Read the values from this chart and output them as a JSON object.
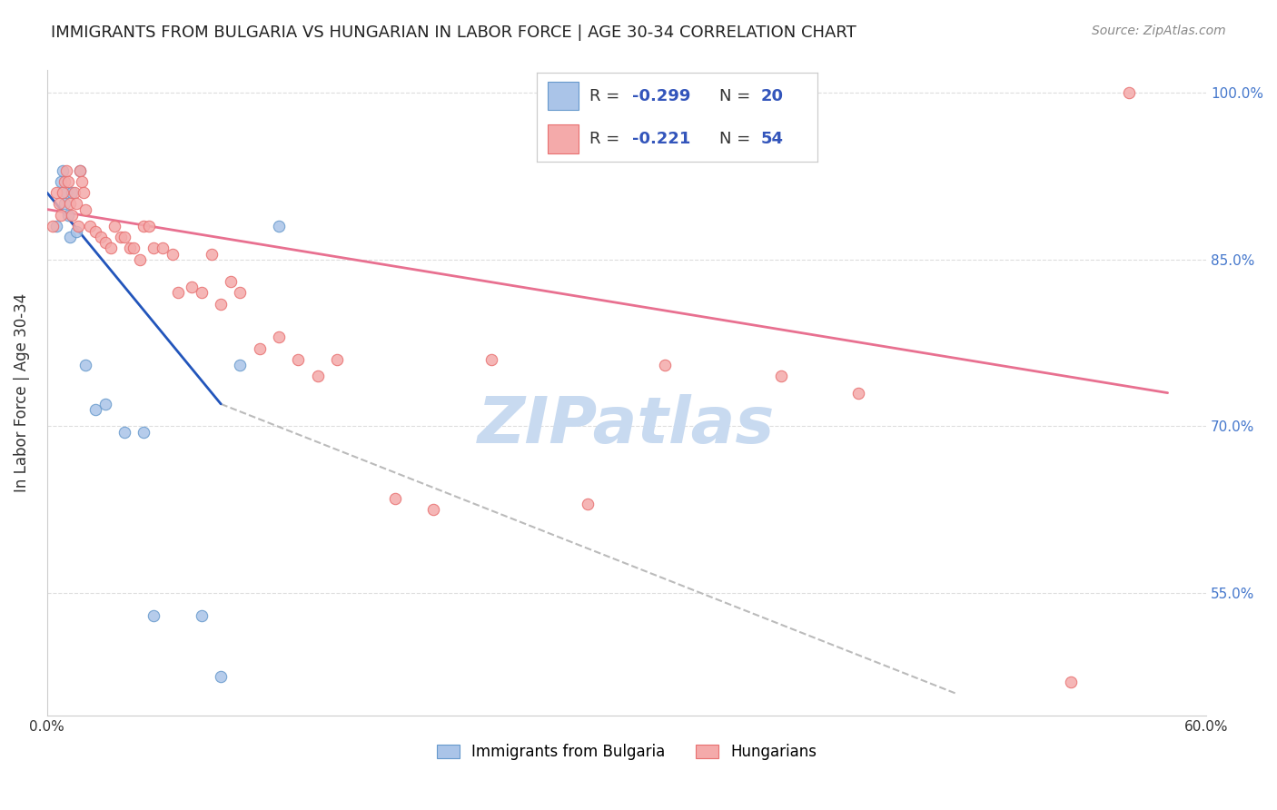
{
  "title": "IMMIGRANTS FROM BULGARIA VS HUNGARIAN IN LABOR FORCE | AGE 30-34 CORRELATION CHART",
  "source": "Source: ZipAtlas.com",
  "ylabel": "In Labor Force | Age 30-34",
  "x_min": 0.0,
  "x_max": 0.6,
  "y_min": 0.44,
  "y_max": 1.02,
  "x_ticks": [
    0.0,
    0.1,
    0.2,
    0.3,
    0.4,
    0.5,
    0.6
  ],
  "y_ticks": [
    0.55,
    0.7,
    0.85,
    1.0
  ],
  "y_tick_labels": [
    "55.0%",
    "70.0%",
    "85.0%",
    "100.0%"
  ],
  "bg_color": "#ffffff",
  "grid_color": "#dddddd",
  "bulgaria_color": "#aac4e8",
  "bulgaria_edge_color": "#6699cc",
  "hungarian_color": "#f4aaaa",
  "hungarian_edge_color": "#e87070",
  "r_bulgaria": -0.299,
  "n_bulgaria": 20,
  "r_hungarian": -0.221,
  "n_hungarian": 54,
  "legend_r_color": "#3355bb",
  "bulgaria_scatter_x": [
    0.005,
    0.007,
    0.008,
    0.009,
    0.01,
    0.011,
    0.012,
    0.013,
    0.015,
    0.017,
    0.02,
    0.025,
    0.03,
    0.04,
    0.05,
    0.055,
    0.08,
    0.09,
    0.1,
    0.12
  ],
  "bulgaria_scatter_y": [
    0.88,
    0.92,
    0.93,
    0.9,
    0.91,
    0.89,
    0.87,
    0.91,
    0.875,
    0.93,
    0.755,
    0.715,
    0.72,
    0.695,
    0.695,
    0.53,
    0.53,
    0.475,
    0.755,
    0.88
  ],
  "hungarian_scatter_x": [
    0.003,
    0.005,
    0.006,
    0.007,
    0.008,
    0.009,
    0.01,
    0.011,
    0.012,
    0.013,
    0.014,
    0.015,
    0.016,
    0.017,
    0.018,
    0.019,
    0.02,
    0.022,
    0.025,
    0.028,
    0.03,
    0.033,
    0.035,
    0.038,
    0.04,
    0.043,
    0.045,
    0.048,
    0.05,
    0.053,
    0.055,
    0.06,
    0.065,
    0.068,
    0.075,
    0.08,
    0.085,
    0.09,
    0.095,
    0.1,
    0.11,
    0.12,
    0.13,
    0.14,
    0.15,
    0.18,
    0.2,
    0.23,
    0.28,
    0.32,
    0.38,
    0.42,
    0.53,
    0.56
  ],
  "hungarian_scatter_y": [
    0.88,
    0.91,
    0.9,
    0.89,
    0.91,
    0.92,
    0.93,
    0.92,
    0.9,
    0.89,
    0.91,
    0.9,
    0.88,
    0.93,
    0.92,
    0.91,
    0.895,
    0.88,
    0.875,
    0.87,
    0.865,
    0.86,
    0.88,
    0.87,
    0.87,
    0.86,
    0.86,
    0.85,
    0.88,
    0.88,
    0.86,
    0.86,
    0.855,
    0.82,
    0.825,
    0.82,
    0.855,
    0.81,
    0.83,
    0.82,
    0.77,
    0.78,
    0.76,
    0.745,
    0.76,
    0.635,
    0.625,
    0.76,
    0.63,
    0.755,
    0.745,
    0.73,
    0.47,
    1.0
  ],
  "blue_line_x": [
    0.0,
    0.09
  ],
  "blue_line_y": [
    0.91,
    0.72
  ],
  "gray_line_x": [
    0.09,
    0.47
  ],
  "gray_line_y": [
    0.72,
    0.46
  ],
  "pink_line_x": [
    0.0,
    0.58
  ],
  "pink_line_y": [
    0.895,
    0.73
  ],
  "marker_size": 80,
  "watermark": "ZIPatlas",
  "watermark_color": "#c8daf0",
  "watermark_fontsize": 52
}
